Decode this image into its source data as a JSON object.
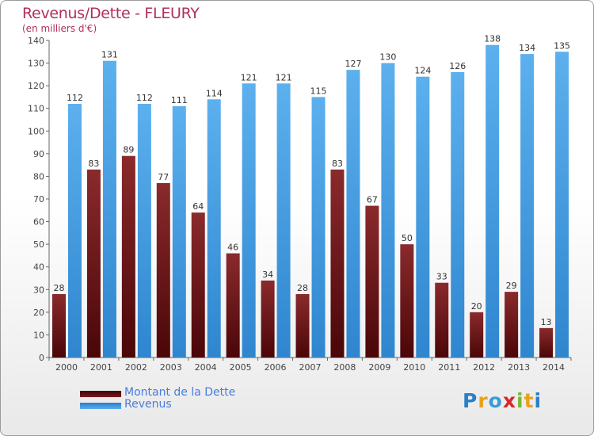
{
  "title": "Revenus/Dette - FLEURY",
  "subtitle": "(en milliers d'€)",
  "legend": [
    {
      "label": "Montant de la Dette",
      "color": "#7a1a1c"
    },
    {
      "label": "Revenus",
      "color": "#3d96db"
    }
  ],
  "logo": {
    "text": "Proxiti",
    "letters": [
      {
        "ch": "P",
        "color": "#2a7fc9"
      },
      {
        "ch": "r",
        "color": "#e8a21a"
      },
      {
        "ch": "o",
        "color": "#3a9ad9"
      },
      {
        "ch": "x",
        "color": "#d9262b"
      },
      {
        "ch": "i",
        "color": "#7bb534"
      },
      {
        "ch": "t",
        "color": "#e8a21a"
      },
      {
        "ch": "i",
        "color": "#2a7fc9"
      }
    ]
  },
  "chart_data": {
    "type": "bar",
    "categories": [
      "2000",
      "2001",
      "2002",
      "2003",
      "2004",
      "2005",
      "2006",
      "2007",
      "2008",
      "2009",
      "2010",
      "2011",
      "2012",
      "2013",
      "2014"
    ],
    "series": [
      {
        "name": "Montant de la Dette",
        "values": [
          28,
          83,
          89,
          77,
          64,
          46,
          34,
          28,
          83,
          67,
          50,
          33,
          20,
          29,
          13
        ]
      },
      {
        "name": "Revenus",
        "values": [
          112,
          131,
          112,
          111,
          114,
          121,
          121,
          115,
          127,
          130,
          124,
          126,
          138,
          134,
          135
        ]
      }
    ],
    "ylim": [
      0,
      140
    ],
    "yticks": [
      0,
      10,
      20,
      30,
      40,
      50,
      60,
      70,
      80,
      90,
      100,
      110,
      120,
      130,
      140
    ],
    "grid": false,
    "legend_position": "bottom-left"
  }
}
